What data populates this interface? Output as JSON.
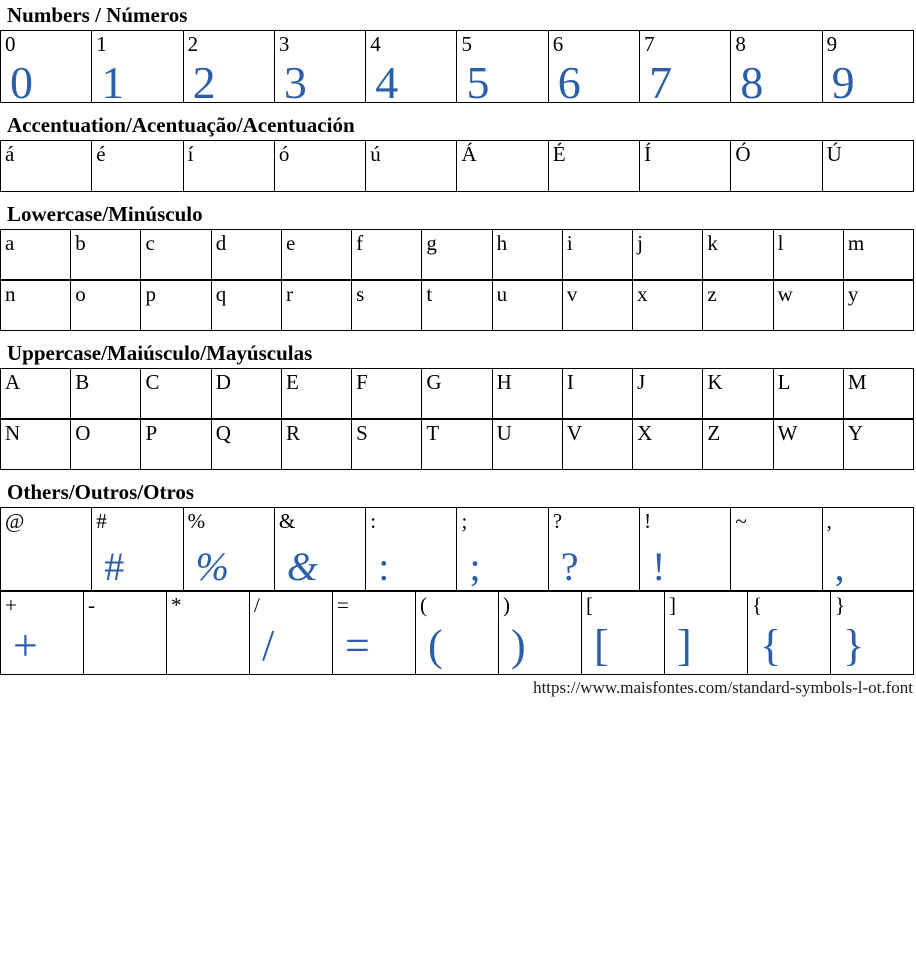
{
  "page": {
    "accent_color": "#2c5fa8",
    "border_color": "#000000",
    "text_color": "#000000",
    "footer_url": "https://www.maisfontes.com/standard-symbols-l-ot.font"
  },
  "sections": [
    {
      "id": "numbers",
      "title": "Numbers / Números",
      "rows": [
        [
          {
            "label": "0",
            "glyph": "0"
          },
          {
            "label": "1",
            "glyph": "1"
          },
          {
            "label": "2",
            "glyph": "2"
          },
          {
            "label": "3",
            "glyph": "3"
          },
          {
            "label": "4",
            "glyph": "4"
          },
          {
            "label": "5",
            "glyph": "5"
          },
          {
            "label": "6",
            "glyph": "6"
          },
          {
            "label": "7",
            "glyph": "7"
          },
          {
            "label": "8",
            "glyph": "8"
          },
          {
            "label": "9",
            "glyph": "9"
          }
        ]
      ]
    },
    {
      "id": "accentuation",
      "title": "Accentuation/Acentuação/Acentuación",
      "rows": [
        [
          {
            "label": "á"
          },
          {
            "label": "é"
          },
          {
            "label": "í"
          },
          {
            "label": "ó"
          },
          {
            "label": "ú"
          },
          {
            "label": "Á"
          },
          {
            "label": "É"
          },
          {
            "label": "Í"
          },
          {
            "label": "Ó"
          },
          {
            "label": "Ú"
          }
        ]
      ]
    },
    {
      "id": "lowercase",
      "title": "Lowercase/Minúsculo",
      "rows": [
        [
          {
            "label": "a"
          },
          {
            "label": "b"
          },
          {
            "label": "c"
          },
          {
            "label": "d"
          },
          {
            "label": "e"
          },
          {
            "label": "f"
          },
          {
            "label": "g"
          },
          {
            "label": "h"
          },
          {
            "label": "i"
          },
          {
            "label": "j"
          },
          {
            "label": "k"
          },
          {
            "label": "l"
          },
          {
            "label": "m"
          }
        ],
        [
          {
            "label": "n"
          },
          {
            "label": "o"
          },
          {
            "label": "p"
          },
          {
            "label": "q"
          },
          {
            "label": "r"
          },
          {
            "label": "s"
          },
          {
            "label": "t"
          },
          {
            "label": "u"
          },
          {
            "label": "v"
          },
          {
            "label": "x"
          },
          {
            "label": "z"
          },
          {
            "label": "w"
          },
          {
            "label": "y"
          }
        ]
      ]
    },
    {
      "id": "uppercase",
      "title": "Uppercase/Maiúsculo/Mayúsculas",
      "rows": [
        [
          {
            "label": "A"
          },
          {
            "label": "B"
          },
          {
            "label": "C"
          },
          {
            "label": "D"
          },
          {
            "label": "E"
          },
          {
            "label": "F"
          },
          {
            "label": "G"
          },
          {
            "label": "H"
          },
          {
            "label": "I"
          },
          {
            "label": "J"
          },
          {
            "label": "K"
          },
          {
            "label": "L"
          },
          {
            "label": "M"
          }
        ],
        [
          {
            "label": "N"
          },
          {
            "label": "O"
          },
          {
            "label": "P"
          },
          {
            "label": "Q"
          },
          {
            "label": "R"
          },
          {
            "label": "S"
          },
          {
            "label": "T"
          },
          {
            "label": "U"
          },
          {
            "label": "V"
          },
          {
            "label": "X"
          },
          {
            "label": "Z"
          },
          {
            "label": "W"
          },
          {
            "label": "Y"
          }
        ]
      ]
    },
    {
      "id": "others",
      "title": "Others/Outros/Otros",
      "rows": [
        [
          {
            "label": "@"
          },
          {
            "label": "#",
            "glyph": "#"
          },
          {
            "label": "%",
            "glyph": "%",
            "italic": true
          },
          {
            "label": "&",
            "glyph": "&",
            "italic": true
          },
          {
            "label": ":",
            "glyph": ":"
          },
          {
            "label": ";",
            "glyph": ";"
          },
          {
            "label": "?",
            "glyph": "?"
          },
          {
            "label": "!",
            "glyph": "!"
          },
          {
            "label": "~"
          },
          {
            "label": ",",
            "glyph": ","
          }
        ],
        [
          {
            "label": "+",
            "glyph": "+"
          },
          {
            "label": "-"
          },
          {
            "label": "*"
          },
          {
            "label": "/",
            "glyph": "/"
          },
          {
            "label": "=",
            "glyph": "="
          },
          {
            "label": "(",
            "glyph": "("
          },
          {
            "label": ")",
            "glyph": ")"
          },
          {
            "label": "[",
            "glyph": "["
          },
          {
            "label": "]",
            "glyph": "]"
          },
          {
            "label": "{",
            "glyph": "{"
          },
          {
            "label": "}",
            "glyph": "}"
          }
        ]
      ]
    }
  ]
}
